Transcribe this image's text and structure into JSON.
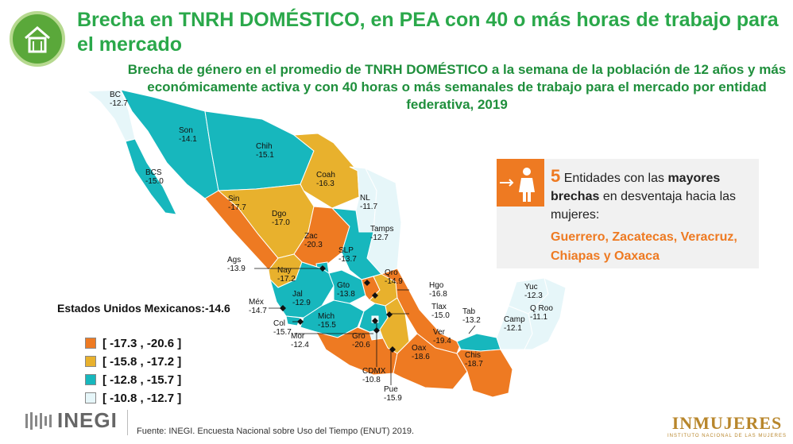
{
  "header": {
    "title": "Brecha en TNRH DOMÉSTICO, en PEA con 40 o más horas de trabajo para el mercado",
    "subtitle": "Brecha de género en el promedio de TNRH DOMÉSTICO a la semana de la población de 12 años y más económicamente activa y con 40 horas o más semanales de trabajo para el mercado por entidad federativa, 2019",
    "logo_icon": "house-icon"
  },
  "national": {
    "label": "Estados Unidos Mexicanos:",
    "value": "-14.6"
  },
  "legend": [
    {
      "label": "[ -17.3 , -20.6 ]",
      "color": "#ee7a22"
    },
    {
      "label": "[ -15.8 , -17.2 ]",
      "color": "#e8b12d"
    },
    {
      "label": "[ -12.8 , -15.7 ]",
      "color": "#17b7bd"
    },
    {
      "label": "[ -10.8 , -12.7 ]",
      "color": "#e6f6f9"
    }
  ],
  "callout": {
    "count": "5",
    "text_a": " Entidades con las ",
    "text_bold1": "mayores brechas",
    "text_b": " en desventaja hacia las mujeres:",
    "states": "Guerrero, Zacatecas, Veracruz, Chiapas y Oaxaca",
    "icon": "woman-icon"
  },
  "states": [
    {
      "abbr": "BC",
      "value": "-12.7"
    },
    {
      "abbr": "Son",
      "value": "-14.1"
    },
    {
      "abbr": "Chih",
      "value": "-15.1"
    },
    {
      "abbr": "Coah",
      "value": "-16.3"
    },
    {
      "abbr": "BCS",
      "value": "-15.0"
    },
    {
      "abbr": "NL",
      "value": "-11.7"
    },
    {
      "abbr": "Sin",
      "value": "-17.7"
    },
    {
      "abbr": "Dgo",
      "value": "-17.0"
    },
    {
      "abbr": "Tamps",
      "value": "-12.7"
    },
    {
      "abbr": "Zac",
      "value": "-20.3"
    },
    {
      "abbr": "SLP",
      "value": "-13.7"
    },
    {
      "abbr": "Ags",
      "value": "-13.9"
    },
    {
      "abbr": "Nay",
      "value": "-17.2"
    },
    {
      "abbr": "Qro",
      "value": "-14.9"
    },
    {
      "abbr": "Gto",
      "value": "-13.8"
    },
    {
      "abbr": "Hgo",
      "value": "-16.8"
    },
    {
      "abbr": "Jal",
      "value": "-12.9"
    },
    {
      "abbr": "Méx",
      "value": "-14.7"
    },
    {
      "abbr": "Tlax",
      "value": "-15.0"
    },
    {
      "abbr": "Tab",
      "value": "-13.2"
    },
    {
      "abbr": "Yuc",
      "value": "-12.3"
    },
    {
      "abbr": "Q Roo",
      "value": "-11.1"
    },
    {
      "abbr": "Camp",
      "value": "-12.1"
    },
    {
      "abbr": "Col",
      "value": "-15.7"
    },
    {
      "abbr": "Mich",
      "value": "-15.5"
    },
    {
      "abbr": "Mor",
      "value": "-12.4"
    },
    {
      "abbr": "Gro",
      "value": "-20.6"
    },
    {
      "abbr": "Ver",
      "value": "-19.4"
    },
    {
      "abbr": "Oax",
      "value": "-18.6"
    },
    {
      "abbr": "Chis",
      "value": "-18.7"
    },
    {
      "abbr": "CDMX",
      "value": "-10.8"
    },
    {
      "abbr": "Pue",
      "value": "-15.9"
    }
  ],
  "footer": {
    "brand": "INEGI",
    "source": "Fuente: INEGI. Encuesta Nacional sobre Uso del Tiempo (ENUT) 2019.",
    "partner": "INMUJERES",
    "partner_sub": "INSTITUTO NACIONAL DE LAS MUJERES"
  }
}
